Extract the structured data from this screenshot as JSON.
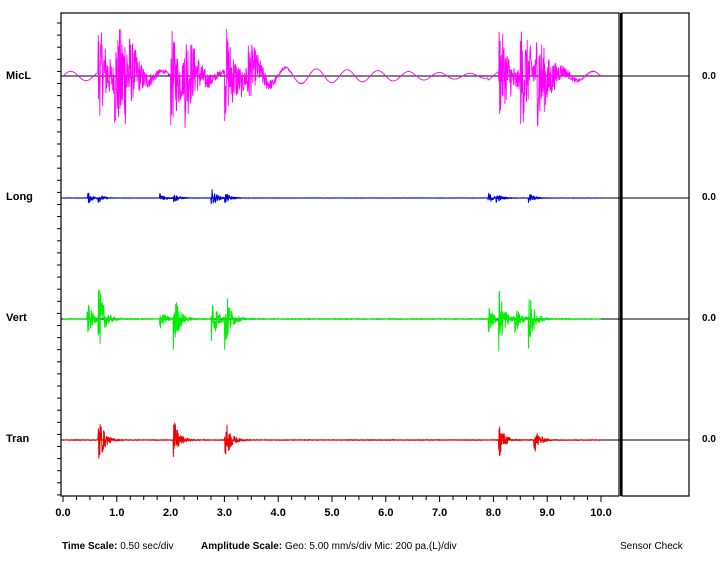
{
  "chart_data": {
    "type": "line",
    "title": "",
    "xlabel": "",
    "ylabel": "",
    "xlim": [
      0,
      10
    ],
    "x_ticks": [
      "0.0",
      "1.0",
      "2.0",
      "3.0",
      "4.0",
      "5.0",
      "6.0",
      "7.0",
      "8.0",
      "9.0",
      "10.0"
    ],
    "grid": false,
    "series": [
      {
        "name": "MicL",
        "color": "#ff00ff",
        "value": "0.0",
        "events": [
          [
            0.65,
            1.0
          ],
          [
            0.95,
            1.0
          ],
          [
            1.05,
            0.9
          ],
          [
            2.0,
            1.0
          ],
          [
            2.25,
            0.8
          ],
          [
            3.0,
            1.0
          ],
          [
            3.4,
            0.6
          ],
          [
            8.1,
            1.0
          ],
          [
            8.5,
            1.0
          ],
          [
            8.8,
            0.9
          ]
        ]
      },
      {
        "name": "Long",
        "color": "#0000dd",
        "value": "0.0",
        "events": [
          [
            0.45,
            0.55
          ],
          [
            0.65,
            0.35
          ],
          [
            1.8,
            0.45
          ],
          [
            2.05,
            0.4
          ],
          [
            2.75,
            0.9
          ],
          [
            3.0,
            0.5
          ],
          [
            7.9,
            0.5
          ],
          [
            8.05,
            0.35
          ],
          [
            8.65,
            0.5
          ]
        ]
      },
      {
        "name": "Vert",
        "color": "#00ee00",
        "value": "0.0",
        "events": [
          [
            0.45,
            0.45
          ],
          [
            0.65,
            1.0
          ],
          [
            1.8,
            0.25
          ],
          [
            2.05,
            0.85
          ],
          [
            2.75,
            0.75
          ],
          [
            3.0,
            0.95
          ],
          [
            7.9,
            0.35
          ],
          [
            8.1,
            0.85
          ],
          [
            8.4,
            0.35
          ],
          [
            8.65,
            0.75
          ]
        ]
      },
      {
        "name": "Tran",
        "color": "#ee0000",
        "value": "0.0",
        "events": [
          [
            0.65,
            1.0
          ],
          [
            2.05,
            0.75
          ],
          [
            3.0,
            0.9
          ],
          [
            8.1,
            0.65
          ],
          [
            8.75,
            0.5
          ]
        ]
      }
    ]
  },
  "footer": {
    "time_label": "Time Scale:",
    "time_value": "0.50 sec/div",
    "amp_label": "Amplitude Scale:",
    "amp_value": "Geo: 5.00 mm/s/div Mic: 200 pa.(L)/div",
    "sensor_check": "Sensor Check"
  }
}
